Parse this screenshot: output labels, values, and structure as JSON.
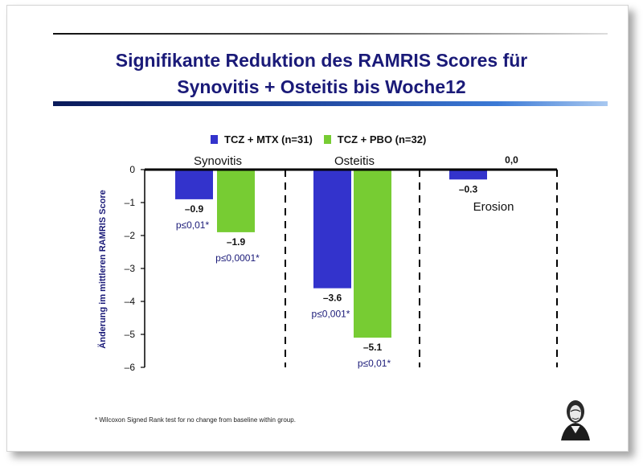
{
  "title": {
    "line1": "Signifikante Reduktion des RAMRIS Scores für",
    "line2": "Synovitis + Osteitis bis Woche12"
  },
  "footnote": "* Wilcoxon Signed Rank test for no change from baseline within group.",
  "colors": {
    "title": "#1a1a78",
    "tcz_mtx": "#3333cc",
    "tcz_pbo": "#77cc33"
  },
  "chart_data": {
    "type": "bar",
    "ylabel": "Änderung im mittleren RAMRIS Score",
    "ylim": [
      -6,
      0
    ],
    "yticks": [
      "0",
      "–1",
      "–2",
      "–3",
      "–4",
      "–5",
      "–6"
    ],
    "categories": [
      "Synovitis",
      "Osteitis",
      "Erosion"
    ],
    "series": [
      {
        "name": "TCZ + MTX (n=31)",
        "values": [
          -0.9,
          -3.6,
          -0.3
        ],
        "labels": [
          "–0.9",
          "–3.6",
          "–0.3"
        ],
        "pvalues": [
          "p≤0,01*",
          "p≤0,001*",
          ""
        ]
      },
      {
        "name": "TCZ + PBO (n=32)",
        "values": [
          -1.9,
          -5.1,
          0.0
        ],
        "labels": [
          "–1.9",
          "–5.1",
          "0,0"
        ],
        "pvalues": [
          "p≤0,0001*",
          "p≤0,01*",
          ""
        ]
      }
    ],
    "grid": false,
    "legend_position": "top-center"
  }
}
